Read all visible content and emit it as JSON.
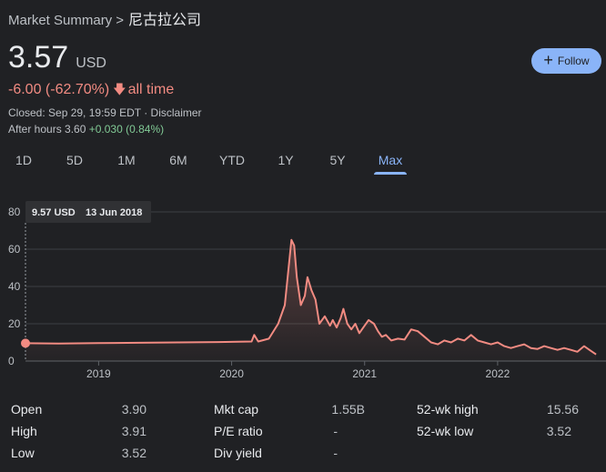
{
  "breadcrumb": {
    "root": "Market Summary",
    "separator": ">",
    "company": "尼古拉公司"
  },
  "quote": {
    "price": "3.57",
    "currency": "USD",
    "change": "-6.00 (-62.70%)",
    "change_period": "all time",
    "closed_text": "Closed: Sep 29, 19:59 EDT · Disclaimer",
    "after_hours_prefix": "After hours 3.60",
    "after_hours_change": "+0.030 (0.84%)"
  },
  "follow_button": {
    "label": "Follow"
  },
  "tabs": [
    {
      "label": "1D"
    },
    {
      "label": "5D"
    },
    {
      "label": "1M"
    },
    {
      "label": "6M"
    },
    {
      "label": "YTD"
    },
    {
      "label": "1Y"
    },
    {
      "label": "5Y"
    },
    {
      "label": "Max",
      "active": true
    }
  ],
  "tooltip": {
    "value": "9.57 USD",
    "date": "13 Jun 2018"
  },
  "chart_data": {
    "type": "area",
    "title": "",
    "xlabel": "",
    "ylabel": "",
    "ylim": [
      0,
      80
    ],
    "y_ticks": [
      "0",
      "20",
      "40",
      "60",
      "80"
    ],
    "x_ticks": [
      "2019",
      "2020",
      "2021",
      "2022"
    ],
    "x_tick_years": [
      2019,
      2020,
      2021,
      2022
    ],
    "grid": true,
    "line_color": "#f28b82",
    "fill_color": "#f28b82",
    "series": [
      {
        "x": [
          2018.45,
          2018.7,
          2019.0,
          2019.3,
          2019.6,
          2019.9,
          2020.15,
          2020.17,
          2020.2,
          2020.28,
          2020.35,
          2020.4,
          2020.45,
          2020.47,
          2020.49,
          2020.52,
          2020.55,
          2020.57,
          2020.6,
          2020.63,
          2020.66,
          2020.7,
          2020.74,
          2020.76,
          2020.79,
          2020.82,
          2020.84,
          2020.87,
          2020.9,
          2020.93,
          2020.96,
          2020.99,
          2021.03,
          2021.07,
          2021.1,
          2021.13,
          2021.16,
          2021.2,
          2021.25,
          2021.3,
          2021.35,
          2021.4,
          2021.45,
          2021.5,
          2021.55,
          2021.6,
          2021.65,
          2021.7,
          2021.75,
          2021.8,
          2021.85,
          2021.9,
          2021.95,
          2022.0,
          2022.05,
          2022.1,
          2022.15,
          2022.2,
          2022.25,
          2022.3,
          2022.35,
          2022.4,
          2022.45,
          2022.5,
          2022.55,
          2022.6,
          2022.65,
          2022.7,
          2022.74
        ],
        "y": [
          9.57,
          9.4,
          9.6,
          9.8,
          10.0,
          10.2,
          10.5,
          14.0,
          10.5,
          12.0,
          20.0,
          30.0,
          65.0,
          62.0,
          45.0,
          30.0,
          35.0,
          45.0,
          38.0,
          33.0,
          20.0,
          24.0,
          19.0,
          22.0,
          18.0,
          23.0,
          28.0,
          20.0,
          17.0,
          20.0,
          15.0,
          18.0,
          22.0,
          20.0,
          16.0,
          13.0,
          14.0,
          11.0,
          12.0,
          11.5,
          17.0,
          16.0,
          13.0,
          10.0,
          9.0,
          11.0,
          10.0,
          12.0,
          11.0,
          14.0,
          11.0,
          10.0,
          9.0,
          10.0,
          8.0,
          7.0,
          8.0,
          9.0,
          7.0,
          6.5,
          8.0,
          7.0,
          6.0,
          7.0,
          6.0,
          5.0,
          8.0,
          5.5,
          3.57
        ]
      }
    ]
  },
  "stats": {
    "col1": [
      {
        "label": "Open",
        "value": "3.90"
      },
      {
        "label": "High",
        "value": "3.91"
      },
      {
        "label": "Low",
        "value": "3.52"
      }
    ],
    "col2": [
      {
        "label": "Mkt cap",
        "value": "1.55B"
      },
      {
        "label": "P/E ratio",
        "value": "-"
      },
      {
        "label": "Div yield",
        "value": "-"
      }
    ],
    "col3": [
      {
        "label": "52-wk high",
        "value": "15.56"
      },
      {
        "label": "52-wk low",
        "value": "3.52"
      }
    ]
  }
}
